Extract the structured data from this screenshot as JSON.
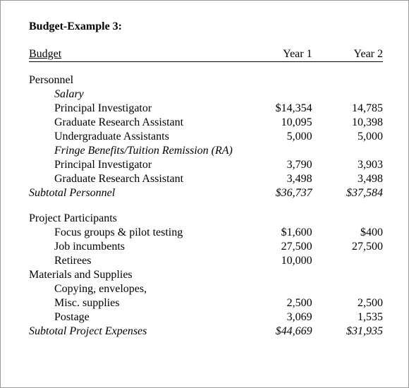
{
  "title": "Budget-Example 3:",
  "header": {
    "label": "Budget",
    "year1": "Year 1",
    "year2": "Year 2"
  },
  "personnel": {
    "heading": "Personnel",
    "salary_heading": "Salary",
    "rows": [
      {
        "label": "Principal Investigator",
        "y1": "$14,354",
        "y2": "14,785"
      },
      {
        "label": "Graduate Research Assistant",
        "y1": "10,095",
        "y2": "10,398"
      },
      {
        "label": "Undergraduate Assistants",
        "y1": "5,000",
        "y2": "5,000"
      }
    ],
    "fringe_heading": "Fringe Benefits/Tuition Remission (RA)",
    "fringe_rows": [
      {
        "label": "Principal Investigator",
        "y1": "3,790",
        "y2": "3,903"
      },
      {
        "label": "Graduate Research Assistant",
        "y1": "3,498",
        "y2": "3,498"
      }
    ],
    "subtotal": {
      "label": "Subtotal Personnel",
      "y1": "$36,737",
      "y2": "$37,584"
    }
  },
  "participants": {
    "heading": "Project Participants",
    "rows": [
      {
        "label": "Focus groups & pilot testing",
        "y1": "$1,600",
        "y2": "$400"
      },
      {
        "label": "Job incumbents",
        "y1": "27,500",
        "y2": "27,500"
      },
      {
        "label": "Retirees",
        "y1": "10,000",
        "y2": ""
      }
    ]
  },
  "materials": {
    "heading": "Materials and Supplies",
    "rows": [
      {
        "label": "Copying, envelopes,",
        "y1": "",
        "y2": ""
      },
      {
        "label": "Misc. supplies",
        "y1": "2,500",
        "y2": "2,500"
      },
      {
        "label": "Postage",
        "y1": "3,069",
        "y2": "1,535"
      }
    ]
  },
  "project_subtotal": {
    "label": "Subtotal Project Expenses",
    "y1": "$44,669",
    "y2": "$31,935"
  }
}
